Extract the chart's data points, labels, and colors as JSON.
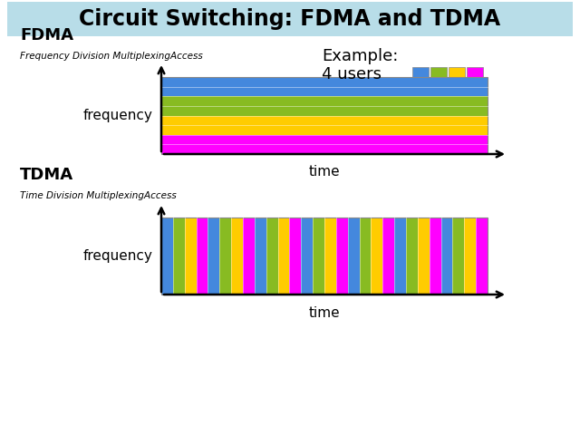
{
  "title": "Circuit Switching: FDMA and TDMA",
  "title_bg": "#b8dde8",
  "bg_color": "#ffffff",
  "example_text": "Example:",
  "users_text": "4 users",
  "fdma_label": "FDMA",
  "fdma_sublabel": "Frequency Division MultiplexingAccess",
  "tdma_label": "TDMA",
  "tdma_sublabel": "Time Division MultiplexingAccess",
  "freq_label": "frequency",
  "time_label": "time",
  "user_colors": [
    "#4488dd",
    "#88bb22",
    "#ffcc00",
    "#ff00ff"
  ],
  "fdma_colors": [
    "#ff00ff",
    "#ff00ff",
    "#ffcc00",
    "#ffcc00",
    "#88bb22",
    "#88bb22",
    "#4488dd",
    "#4488dd"
  ],
  "n_tdma_slots": 28
}
